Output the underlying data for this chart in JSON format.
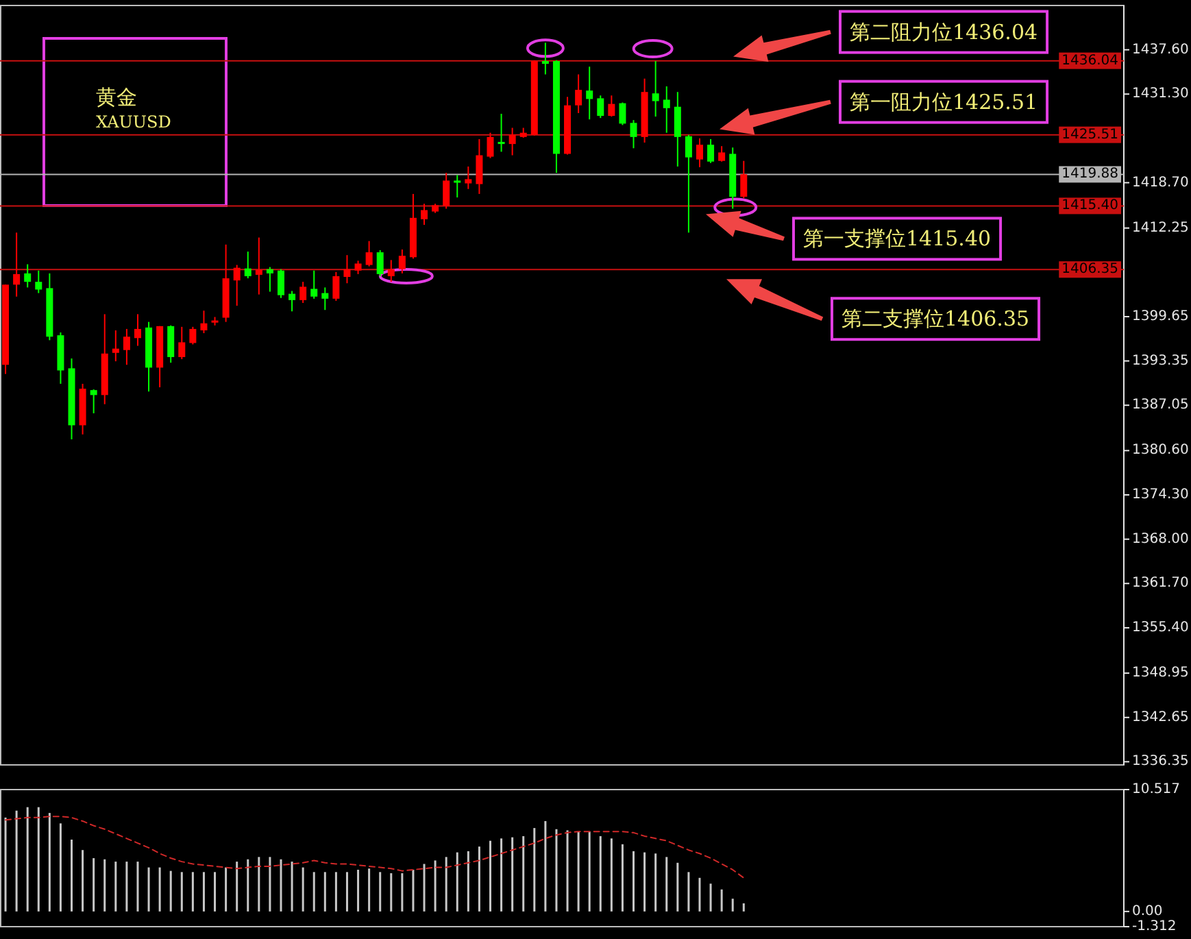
{
  "chart_data": [
    {
      "type": "candlestick",
      "title": "黄金",
      "subtitle": "XAUUSD",
      "tick_labels": "y",
      "categories": [
        null,
        null,
        null,
        null,
        null,
        null,
        null,
        null,
        null,
        null,
        null,
        null,
        null,
        null,
        null,
        null,
        null,
        null,
        null,
        null,
        null,
        null,
        null,
        null,
        null,
        null,
        null,
        null,
        null,
        null,
        null,
        null,
        null,
        null,
        null,
        null,
        null,
        null,
        null,
        null,
        null,
        null,
        null,
        null,
        null,
        null,
        null,
        null,
        null,
        null,
        null,
        null,
        null,
        null,
        null,
        null,
        null,
        null,
        null,
        null,
        null,
        null,
        null,
        null,
        null,
        null,
        null,
        null,
        null,
        null,
        null,
        null,
        null,
        null,
        null,
        null,
        null,
        null,
        null,
        null,
        null,
        null,
        null,
        null,
        null,
        null,
        null,
        null,
        null,
        null,
        null,
        null,
        null,
        null,
        null,
        null,
        null,
        null,
        null,
        null,
        null,
        null
      ],
      "ohlc": [
        [
          1392.8,
          1404.2,
          1391.5,
          1404.2
        ],
        [
          1404.2,
          1411.6,
          1402.5,
          1405.7
        ],
        [
          1405.8,
          1407.1,
          1403.8,
          1404.6
        ],
        [
          1404.6,
          1406.2,
          1403.0,
          1403.5
        ],
        [
          1403.7,
          1405.8,
          1396.3,
          1396.8
        ],
        [
          1397.0,
          1397.4,
          1390.1,
          1392.0
        ],
        [
          1392.3,
          1393.7,
          1382.2,
          1384.2
        ],
        [
          1384.2,
          1390.1,
          1382.9,
          1389.4
        ],
        [
          1389.2,
          1389.3,
          1385.9,
          1388.5
        ],
        [
          1388.5,
          1400.0,
          1387.2,
          1394.4
        ],
        [
          1394.5,
          1397.7,
          1393.3,
          1395.1
        ],
        [
          1394.9,
          1397.9,
          1392.8,
          1396.8
        ],
        [
          1396.6,
          1400.0,
          1395.5,
          1397.9
        ],
        [
          1398.1,
          1398.9,
          1389.0,
          1392.4
        ],
        [
          1392.4,
          1398.3,
          1389.6,
          1398.3
        ],
        [
          1398.3,
          1398.4,
          1393.1,
          1393.9
        ],
        [
          1393.9,
          1398.2,
          1393.6,
          1396.0
        ],
        [
          1395.9,
          1398.2,
          1395.7,
          1397.9
        ],
        [
          1397.7,
          1400.5,
          1397.3,
          1398.7
        ],
        [
          1398.8,
          1399.6,
          1398.4,
          1399.1
        ],
        [
          1399.5,
          1409.9,
          1398.9,
          1405.1
        ],
        [
          1404.8,
          1407.0,
          1401.2,
          1406.6
        ],
        [
          1406.5,
          1408.9,
          1405.1,
          1405.4
        ],
        [
          1405.6,
          1410.9,
          1402.8,
          1406.3
        ],
        [
          1406.4,
          1406.7,
          1403.2,
          1405.8
        ],
        [
          1406.2,
          1406.4,
          1402.3,
          1402.7
        ],
        [
          1402.9,
          1403.3,
          1400.4,
          1402.0
        ],
        [
          1402.0,
          1404.6,
          1401.6,
          1403.9
        ],
        [
          1403.6,
          1406.2,
          1402.2,
          1402.5
        ],
        [
          1403.0,
          1403.8,
          1400.6,
          1402.2
        ],
        [
          1402.2,
          1406.0,
          1401.9,
          1405.4
        ],
        [
          1405.3,
          1408.4,
          1404.4,
          1406.4
        ],
        [
          1406.2,
          1407.6,
          1405.7,
          1407.2
        ],
        [
          1407.0,
          1410.4,
          1406.8,
          1408.8
        ],
        [
          1408.8,
          1409.1,
          1405.4,
          1405.7
        ],
        [
          1405.4,
          1407.7,
          1404.6,
          1406.4
        ],
        [
          1406.4,
          1409.2,
          1405.8,
          1408.3
        ],
        [
          1408.1,
          1417.1,
          1407.9,
          1413.7
        ],
        [
          1413.5,
          1415.7,
          1412.7,
          1414.8
        ],
        [
          1414.6,
          1415.7,
          1414.4,
          1415.5
        ],
        [
          1415.4,
          1420.1,
          1415.0,
          1419.0
        ],
        [
          1419.0,
          1419.8,
          1416.6,
          1418.7
        ],
        [
          1418.6,
          1421.0,
          1417.8,
          1419.2
        ],
        [
          1418.5,
          1424.9,
          1417.1,
          1422.6
        ],
        [
          1422.4,
          1425.8,
          1422.2,
          1425.2
        ],
        [
          1424.5,
          1428.5,
          1423.1,
          1424.2
        ],
        [
          1424.2,
          1426.5,
          1422.6,
          1425.5
        ],
        [
          1425.2,
          1426.5,
          1425.1,
          1425.8
        ],
        [
          1425.5,
          1436.1,
          1425.4,
          1436.0
        ],
        [
          1436.0,
          1438.6,
          1434.1,
          1435.6
        ],
        [
          1436.0,
          1436.1,
          1420.1,
          1422.8
        ],
        [
          1422.8,
          1430.9,
          1422.7,
          1429.7
        ],
        [
          1429.7,
          1434.1,
          1428.6,
          1431.9
        ],
        [
          1431.8,
          1435.2,
          1427.7,
          1430.6
        ],
        [
          1430.7,
          1431.1,
          1427.9,
          1428.2
        ],
        [
          1428.2,
          1431.1,
          1428.1,
          1429.9
        ],
        [
          1430.0,
          1430.1,
          1426.9,
          1427.1
        ],
        [
          1427.2,
          1427.6,
          1423.6,
          1425.2
        ],
        [
          1425.2,
          1433.5,
          1424.4,
          1431.6
        ],
        [
          1431.4,
          1436.0,
          1428.1,
          1430.3
        ],
        [
          1430.5,
          1432.4,
          1425.8,
          1429.3
        ],
        [
          1429.5,
          1431.6,
          1421.0,
          1425.2
        ],
        [
          1425.3,
          1425.5,
          1411.6,
          1422.3
        ],
        [
          1422.0,
          1425.0,
          1420.9,
          1424.1
        ],
        [
          1424.1,
          1424.9,
          1421.5,
          1421.7
        ],
        [
          1421.8,
          1423.9,
          1421.7,
          1423.0
        ],
        [
          1422.8,
          1423.7,
          1415.0,
          1416.7
        ],
        [
          1416.7,
          1421.8,
          1416.5,
          1419.9
        ],
        null,
        null,
        null,
        null,
        null,
        null,
        null,
        null,
        null,
        null,
        null,
        null,
        null,
        null,
        null,
        null,
        null,
        null,
        null,
        null,
        null,
        null,
        null,
        null,
        null,
        null,
        null,
        null,
        null,
        null,
        null,
        null,
        null,
        null
      ],
      "colors": [
        "#ff0000",
        "#ff0000",
        "#00ff00",
        "#00ff00",
        "#00ff00",
        "#00ff00",
        "#00ff00",
        "#ff0000",
        "#00ff00",
        "#ff0000",
        "#ff0000",
        "#ff0000",
        "#ff0000",
        "#00ff00",
        "#ff0000",
        "#00ff00",
        "#ff0000",
        "#ff0000",
        "#ff0000",
        "#ff0000",
        "#ff0000",
        "#ff0000",
        "#00ff00",
        "#ff0000",
        "#00ff00",
        "#00ff00",
        "#00ff00",
        "#ff0000",
        "#00ff00",
        "#00ff00",
        "#ff0000",
        "#ff0000",
        "#ff0000",
        "#ff0000",
        "#00ff00",
        "#ff0000",
        "#ff0000",
        "#ff0000",
        "#ff0000",
        "#ff0000",
        "#ff0000",
        "#00ff00",
        "#ff0000",
        "#ff0000",
        "#ff0000",
        "#00ff00",
        "#ff0000",
        "#ff0000",
        "#ff0000",
        "#00ff00",
        "#00ff00",
        "#ff0000",
        "#ff0000",
        "#00ff00",
        "#00ff00",
        "#ff0000",
        "#00ff00",
        "#00ff00",
        "#ff0000",
        "#00ff00",
        "#00ff00",
        "#00ff00",
        "#00ff00",
        "#ff0000",
        "#00ff00",
        "#ff0000",
        "#00ff00",
        "#ff0000",
        null,
        null,
        null,
        null,
        null,
        null,
        null,
        null,
        null,
        null,
        null,
        null,
        null,
        null,
        null,
        null,
        null,
        null,
        null,
        null,
        null,
        null,
        null,
        null,
        null,
        null,
        null,
        null,
        null,
        null,
        null,
        null,
        null,
        null
      ],
      "ylim": [
        1335.9,
        1443.9
      ],
      "yticks": [
        {
          "value": 1437.6,
          "label": "1437.60"
        },
        {
          "value": 1431.3,
          "label": "1431.30"
        },
        {
          "value": 1418.7,
          "label": "1418.70"
        },
        1412.25,
        {
          "value": 1399.65,
          "label": "1399.65"
        },
        1393.35,
        1387.05,
        {
          "value": 1380.6,
          "label": "1380.60"
        },
        {
          "value": 1374.3,
          "label": "1374.30"
        },
        {
          "value": 1368,
          "label": "1368.00"
        },
        {
          "value": 1361.7,
          "label": "1361.70"
        },
        {
          "value": 1355.4,
          "label": "1355.40"
        },
        1348.95,
        1342.65,
        1336.35
      ],
      "ref_lines": [
        {
          "axis": "y",
          "value": 1436.04,
          "label": "1436.04",
          "color": "#c81010"
        },
        {
          "axis": "y",
          "value": 1425.51,
          "label": "1425.51",
          "color": "#c81010"
        },
        {
          "axis": "y",
          "value": 1419.88,
          "label": "1419.88",
          "color": "#b4b4b4"
        },
        {
          "axis": "y",
          "value": 1415.4,
          "label": "1415.40",
          "color": "#c81010"
        },
        {
          "axis": "y",
          "value": 1406.35,
          "label": "1406.35",
          "color": "#c81010"
        }
      ],
      "annotations": [
        {
          "text": "第二阻力位1436.04",
          "y": 1436.04
        },
        {
          "text": "第一阻力位1425.51",
          "y": 1425.51
        },
        {
          "text": "第一支撑位1415.40",
          "y": 1415.4
        },
        {
          "text": "第二支撑位1406.35",
          "y": 1406.35
        }
      ]
    },
    {
      "type": "bar",
      "tick_labels": "y",
      "categories": [
        null,
        null,
        null,
        null,
        null,
        null,
        null,
        null,
        null,
        null,
        null,
        null,
        null,
        null,
        null,
        null,
        null,
        null,
        null,
        null,
        null,
        null,
        null,
        null,
        null,
        null,
        null,
        null,
        null,
        null,
        null,
        null,
        null,
        null,
        null,
        null,
        null,
        null,
        null,
        null,
        null,
        null,
        null,
        null,
        null,
        null,
        null,
        null,
        null,
        null,
        null,
        null,
        null,
        null,
        null,
        null,
        null,
        null,
        null,
        null,
        null,
        null,
        null,
        null,
        null,
        null,
        null,
        null,
        null,
        null,
        null,
        null,
        null,
        null,
        null,
        null,
        null,
        null,
        null,
        null,
        null,
        null,
        null,
        null,
        null,
        null,
        null,
        null,
        null,
        null,
        null,
        null,
        null,
        null,
        null,
        null,
        null,
        null,
        null,
        null,
        null,
        null
      ],
      "series": [
        {
          "type": "bar",
          "color": "#c8c8c8",
          "values": [
            8.1,
            8.7,
            9.0,
            9.0,
            8.5,
            7.6,
            6.2,
            5.3,
            4.6,
            4.5,
            4.3,
            4.3,
            4.3,
            3.8,
            3.8,
            3.5,
            3.4,
            3.4,
            3.4,
            3.4,
            3.8,
            4.3,
            4.5,
            4.7,
            4.7,
            4.5,
            4.3,
            3.8,
            3.4,
            3.4,
            3.4,
            3.4,
            3.6,
            3.7,
            3.4,
            3.3,
            3.3,
            3.6,
            4.1,
            4.4,
            4.7,
            5.1,
            5.2,
            5.6,
            6.1,
            6.3,
            6.4,
            6.5,
            7.2,
            7.8,
            7.1,
            7.0,
            6.9,
            6.9,
            6.5,
            6.3,
            5.8,
            5.2,
            5.1,
            5.0,
            4.7,
            4.2,
            3.4,
            2.9,
            2.4,
            1.9,
            1.1,
            0.7,
            null,
            null,
            null,
            null,
            null,
            null,
            null,
            null,
            null,
            null,
            null,
            null,
            null,
            null,
            null,
            null,
            null,
            null,
            null,
            null,
            null,
            null,
            null,
            null,
            null,
            null,
            null,
            null,
            null,
            null,
            null,
            null,
            null,
            null
          ]
        },
        {
          "type": "line",
          "color": "#d02828",
          "line_style": "dashed",
          "values": [
            7.9,
            8.0,
            8.1,
            8.1,
            8.2,
            8.2,
            8.1,
            7.8,
            7.4,
            7.1,
            6.7,
            6.3,
            5.9,
            5.5,
            5.0,
            4.6,
            4.3,
            4.1,
            4.0,
            3.9,
            3.8,
            3.7,
            3.8,
            3.9,
            3.9,
            4.0,
            4.1,
            4.2,
            4.4,
            4.2,
            4.1,
            4.1,
            4.0,
            3.9,
            3.8,
            3.7,
            3.5,
            3.6,
            3.7,
            3.8,
            3.8,
            4.0,
            4.2,
            4.4,
            4.7,
            5.0,
            5.3,
            5.6,
            5.9,
            6.3,
            6.6,
            6.8,
            6.9,
            6.9,
            6.9,
            6.9,
            6.9,
            6.8,
            6.5,
            6.3,
            6.1,
            5.7,
            5.3,
            5.0,
            4.6,
            4.1,
            3.6,
            2.9,
            null,
            null,
            null,
            null,
            null,
            null,
            null,
            null,
            null,
            null,
            null,
            null,
            null,
            null,
            null,
            null,
            null,
            null,
            null,
            null,
            null,
            null,
            null,
            null,
            null,
            null,
            null,
            null,
            null,
            null,
            null,
            null,
            null,
            null
          ]
        }
      ],
      "ylim": [
        -1.312,
        10.517
      ],
      "yticks": [
        {
          "value": 10.517,
          "label": "10.517"
        },
        {
          "value": 0,
          "label": "0.00"
        },
        {
          "value": -1.312,
          "label": "-1.312"
        }
      ]
    }
  ]
}
